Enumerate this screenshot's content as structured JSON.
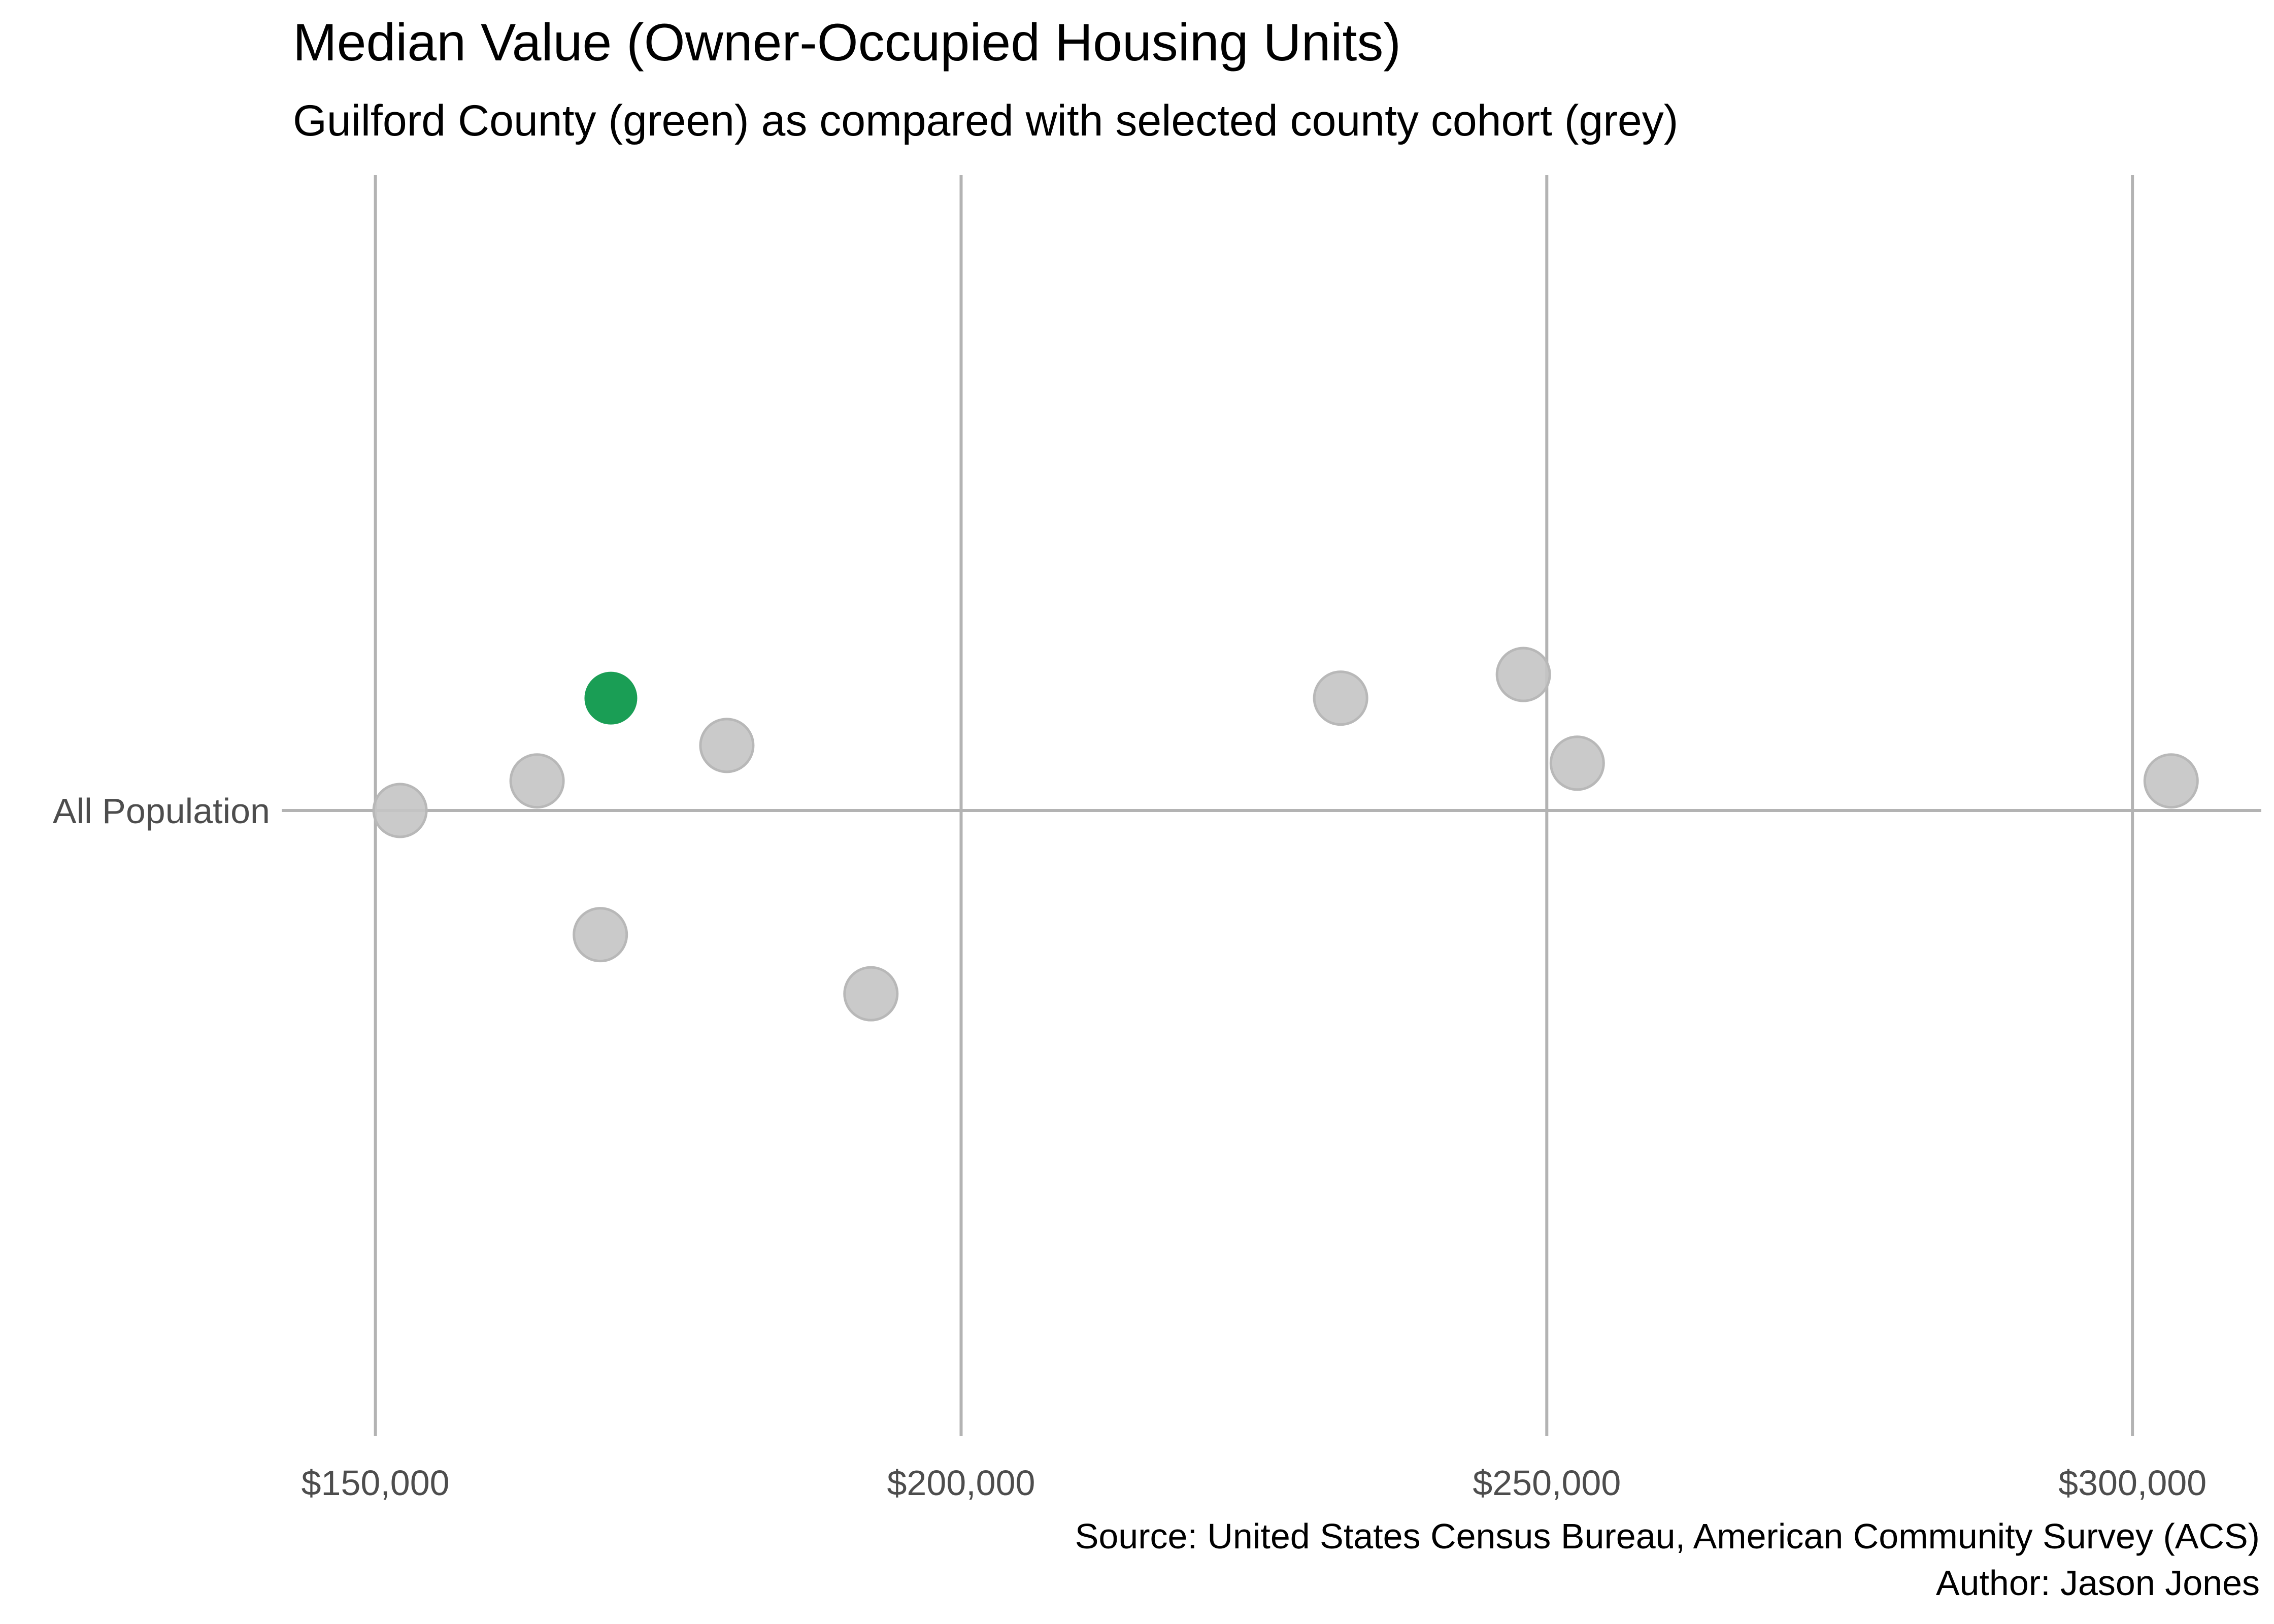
{
  "chart_data": {
    "type": "scatter",
    "title": "Median Value (Owner-Occupied Housing Units)",
    "subtitle": "Guilford County (green) as compared with selected county cohort (grey)",
    "caption_lines": [
      "Source: United States Census Bureau, American Community Survey (ACS)",
      "Author: Jason Jones"
    ],
    "xlabel": "",
    "ylabel": "",
    "x_ticks": [
      150000,
      200000,
      250000,
      300000
    ],
    "x_tick_labels": [
      "$150,000",
      "$200,000",
      "$250,000",
      "$300,000"
    ],
    "y_category": "All Population",
    "xlim": [
      142000,
      311000
    ],
    "grid": true,
    "colors": {
      "highlight": "#1a9e55",
      "cohort": "#c4c4c4",
      "grid": "#b3b3b3"
    },
    "points": [
      {
        "x": 152100,
        "jitter": 0.0,
        "highlight": false
      },
      {
        "x": 163800,
        "jitter": 0.05,
        "highlight": false
      },
      {
        "x": 169200,
        "jitter": -0.21,
        "highlight": false
      },
      {
        "x": 170100,
        "jitter": 0.19,
        "highlight": true
      },
      {
        "x": 180000,
        "jitter": 0.11,
        "highlight": false
      },
      {
        "x": 192300,
        "jitter": -0.31,
        "highlight": false
      },
      {
        "x": 232400,
        "jitter": 0.19,
        "highlight": false
      },
      {
        "x": 248000,
        "jitter": 0.23,
        "highlight": false
      },
      {
        "x": 252600,
        "jitter": 0.08,
        "highlight": false
      },
      {
        "x": 303300,
        "jitter": 0.05,
        "highlight": false
      }
    ]
  }
}
